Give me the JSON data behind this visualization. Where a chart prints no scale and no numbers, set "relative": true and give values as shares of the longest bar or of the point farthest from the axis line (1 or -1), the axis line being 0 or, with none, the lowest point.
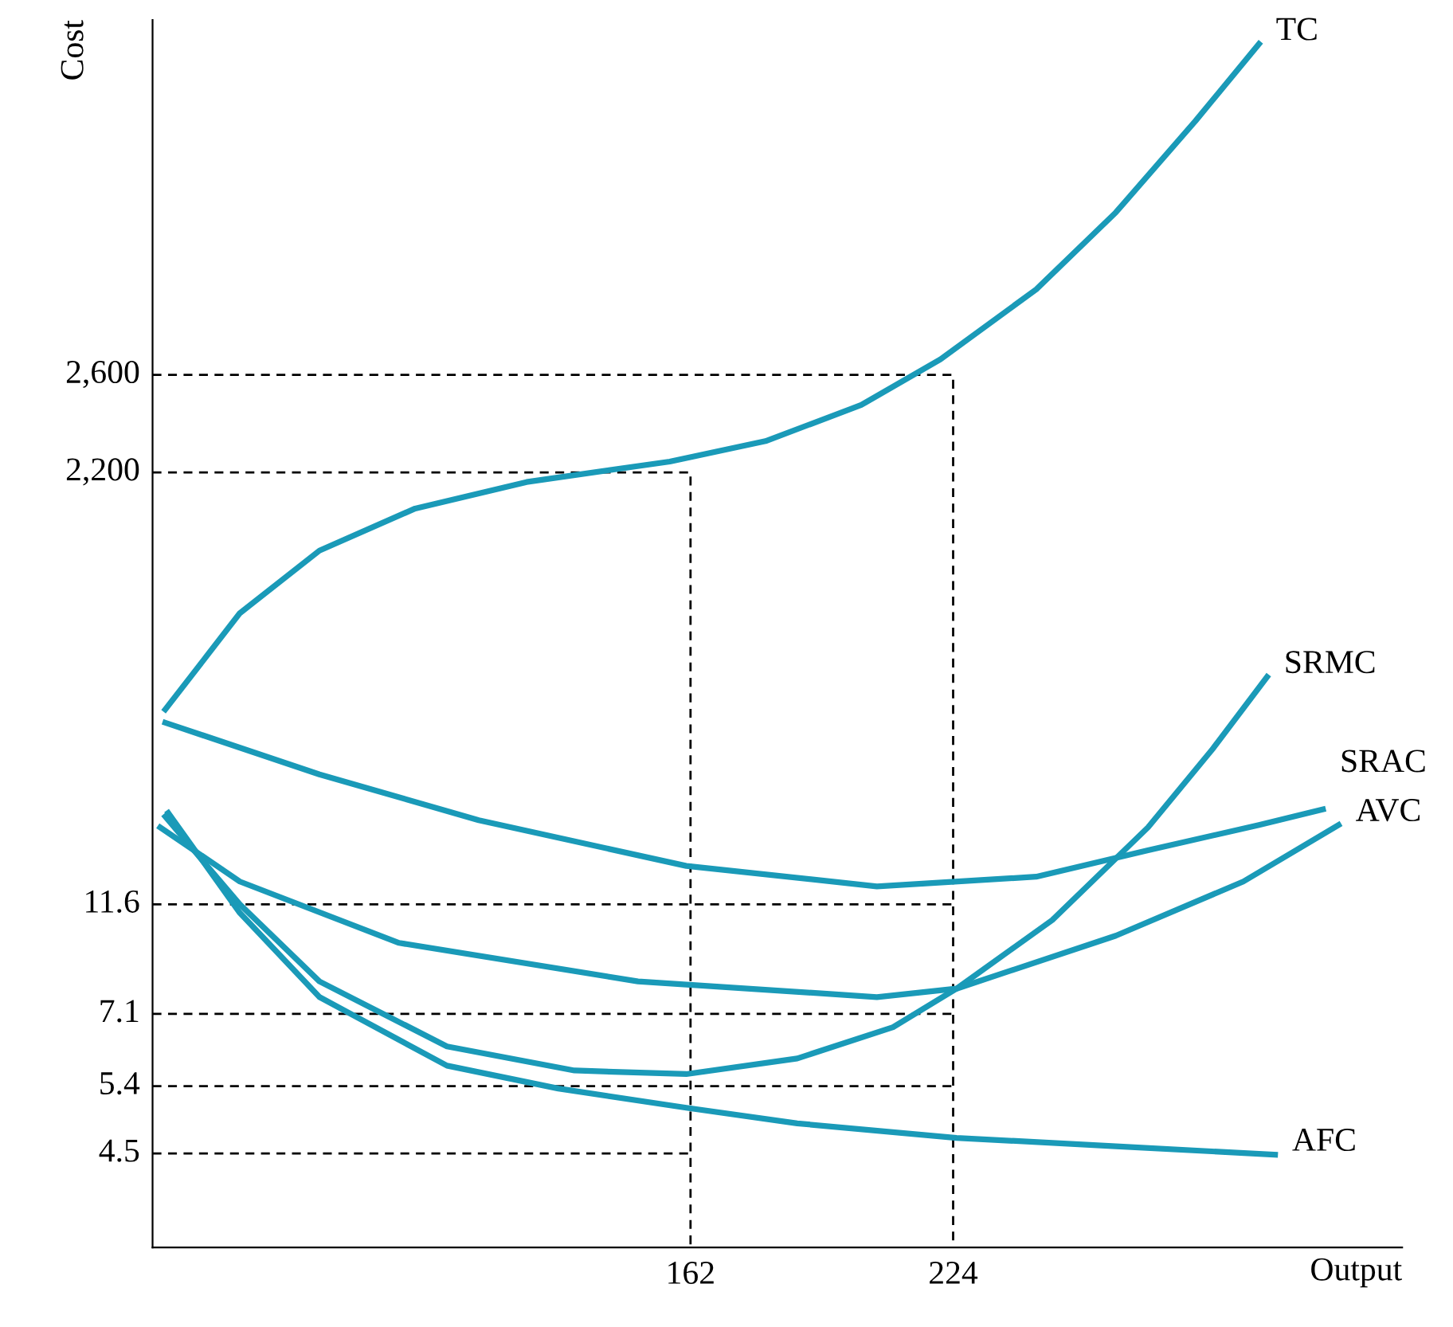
{
  "chart_data": {
    "type": "line",
    "xlabel": "Output",
    "ylabel": "Cost",
    "relative": true,
    "xlim": [
      35,
      330
    ],
    "xticks": [
      162,
      224
    ],
    "annotations": [
      "2,600",
      "2,200",
      "11.6",
      "7.1",
      "5.4",
      "4.5"
    ],
    "grid": false,
    "legend": false,
    "marker": "none",
    "line_style": "solid",
    "series": [
      {
        "name": "TC",
        "color": "#1a9ab8",
        "x": [
          38,
          55.6,
          74.4,
          97,
          123.3,
          157.1,
          179.7,
          202.3,
          221,
          243.6,
          262.4,
          281.2,
          296.2
        ],
        "values": [
          0.447,
          0.527,
          0.579,
          0.614,
          0.636,
          0.653,
          0.67,
          0.7,
          0.738,
          0.796,
          0.86,
          0.936,
          1
        ]
      },
      {
        "name": "SRMC",
        "color": "#1a9ab8",
        "x": [
          38,
          55.6,
          74.4,
          104.5,
          134.6,
          161,
          187.2,
          209.8,
          224.8,
          247.4,
          270,
          285,
          298.1
        ],
        "values": [
          0.358,
          0.285,
          0.221,
          0.167,
          0.147,
          0.144,
          0.157,
          0.183,
          0.215,
          0.272,
          0.349,
          0.413,
          0.474
        ]
      },
      {
        "name": "SRAC",
        "color": "#1a9ab8",
        "x": [
          38,
          74.4,
          112,
          161,
          206,
          243.6,
          270,
          296.2,
          311.3
        ],
        "values": [
          0.436,
          0.393,
          0.355,
          0.317,
          0.3,
          0.308,
          0.33,
          0.351,
          0.364
        ]
      },
      {
        "name": "AVC",
        "color": "#1a9ab8",
        "x": [
          36.8,
          55.6,
          93.2,
          149.6,
          206,
          224.8,
          262.4,
          292.5,
          315
        ],
        "values": [
          0.349,
          0.304,
          0.253,
          0.221,
          0.208,
          0.215,
          0.259,
          0.304,
          0.351
        ]
      },
      {
        "name": "AFC",
        "color": "#1a9ab8",
        "x": [
          38.7,
          55.6,
          74.4,
          104.5,
          130.8,
          161,
          187.2,
          224.8,
          262.4,
          300
        ],
        "values": [
          0.361,
          0.278,
          0.208,
          0.151,
          0.132,
          0.116,
          0.103,
          0.091,
          0.084,
          0.077
        ]
      },
      {
        "color": "#000000",
        "line_style": "dashed",
        "x": [
          35,
          224,
          224
        ],
        "values": [
          0.725,
          0.725,
          0
        ]
      },
      {
        "color": "#000000",
        "line_style": "dashed",
        "x": [
          35,
          162,
          162
        ],
        "values": [
          0.644,
          0.644,
          0
        ]
      },
      {
        "color": "#000000",
        "line_style": "dashed",
        "x": [
          35,
          224
        ],
        "values": [
          0.285,
          0.285
        ]
      },
      {
        "color": "#000000",
        "line_style": "dashed",
        "x": [
          35,
          224
        ],
        "values": [
          0.194,
          0.194
        ]
      },
      {
        "color": "#000000",
        "line_style": "dashed",
        "x": [
          35,
          224
        ],
        "values": [
          0.134,
          0.134
        ]
      },
      {
        "color": "#000000",
        "line_style": "dashed",
        "x": [
          35,
          162
        ],
        "values": [
          0.078,
          0.078
        ]
      }
    ]
  }
}
